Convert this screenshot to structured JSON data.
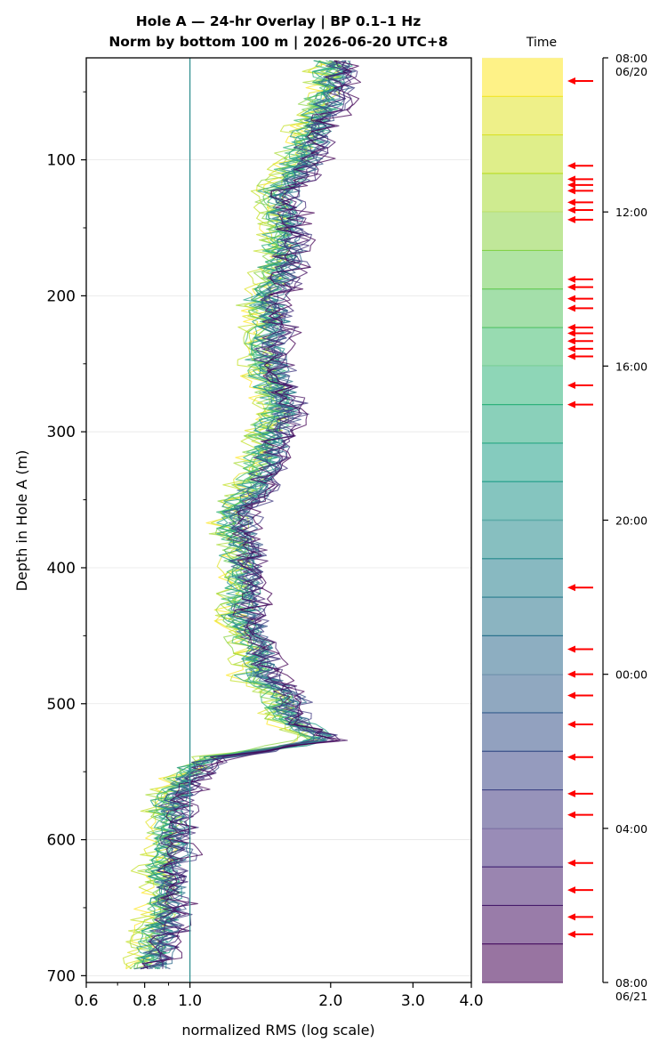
{
  "chart_data": {
    "type": "line",
    "title": "Hole A — 24-hr Overlay  |  BP 0.1–1 Hz",
    "subtitle": "Norm by bottom 100 m  |  2026-06-20 UTC+8",
    "xlabel": "normalized RMS  (log scale)",
    "ylabel": "Depth in Hole A (m)",
    "x_scale": "log",
    "xlim": [
      0.6,
      4.0
    ],
    "ylim": [
      705,
      25
    ],
    "y_inverted": true,
    "grid": true,
    "x_ticks": [
      0.6,
      0.8,
      1.0,
      2.0,
      3.0,
      4.0
    ],
    "x_tick_labels": [
      "0.6",
      "0.8",
      "1.0",
      "2.0",
      "3.0",
      "4.0"
    ],
    "y_ticks": [
      100,
      200,
      300,
      400,
      500,
      600,
      700
    ],
    "y_tick_labels": [
      "100",
      "200",
      "300",
      "400",
      "500",
      "600",
      "700"
    ],
    "reference_line_x": 1.0,
    "profile_depths_m": [
      25,
      50,
      75,
      100,
      125,
      140,
      165,
      190,
      200,
      220,
      240,
      260,
      283,
      300,
      325,
      345,
      360,
      380,
      400,
      420,
      440,
      460,
      480,
      495,
      510,
      526,
      540,
      555,
      570,
      590,
      610,
      620,
      640,
      660,
      680,
      695
    ],
    "median_profile_rms": [
      2.05,
      2.0,
      1.85,
      1.75,
      1.55,
      1.6,
      1.6,
      1.55,
      1.45,
      1.5,
      1.45,
      1.5,
      1.6,
      1.5,
      1.45,
      1.35,
      1.25,
      1.3,
      1.3,
      1.3,
      1.3,
      1.4,
      1.4,
      1.6,
      1.6,
      1.95,
      1.1,
      0.98,
      0.92,
      0.92,
      0.92,
      0.88,
      0.9,
      0.88,
      0.85,
      0.82
    ],
    "series_count": 24,
    "colorbar": {
      "label": "Time",
      "colormap": "viridis",
      "ticks": [
        "08:00\n06/20",
        "12:00",
        "16:00",
        "20:00",
        "00:00",
        "04:00",
        "08:00\n06/21"
      ],
      "tick_hours": [
        0,
        4,
        8,
        12,
        16,
        20,
        24
      ],
      "band_count": 24,
      "marker_color": "#ff0000",
      "event_marker_hours": [
        0.6,
        2.8,
        3.15,
        3.3,
        3.45,
        3.75,
        3.95,
        4.2,
        5.75,
        5.95,
        6.25,
        6.5,
        7.0,
        7.15,
        7.35,
        7.55,
        7.75,
        8.5,
        9.0,
        13.75,
        15.35,
        16.0,
        16.55,
        17.3,
        18.15,
        19.1,
        19.65,
        20.9,
        21.6,
        22.3,
        22.75
      ]
    }
  }
}
